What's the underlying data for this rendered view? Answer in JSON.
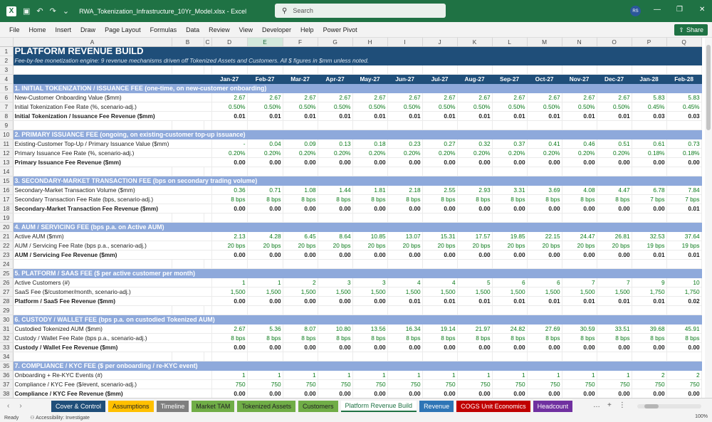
{
  "titlebar": {
    "app_icon": "X",
    "file_title": "RWA_Tokenization_Infrastructure_10Yr_Model.xlsx  -  Excel",
    "search_placeholder": "Search",
    "avatar": "RS",
    "minimize": "—",
    "restore": "❐",
    "close": "✕"
  },
  "menu": [
    "File",
    "Home",
    "Insert",
    "Draw",
    "Page Layout",
    "Formulas",
    "Data",
    "Review",
    "View",
    "Developer",
    "Help",
    "Power Pivot"
  ],
  "share_label": "Share",
  "columns": [
    "A",
    "B",
    "C",
    "D",
    "E",
    "F",
    "G",
    "H",
    "I",
    "J",
    "K",
    "L",
    "M",
    "N",
    "O",
    "P",
    "Q"
  ],
  "selected_column": "E",
  "sheet": {
    "title": "PLATFORM REVENUE BUILD",
    "subtitle": "Fee-by-fee monetization engine: 9 revenue mechanisms driven off Tokenized Assets and Customers. All $ figures in $mm unless noted.",
    "months": [
      "Jan-27",
      "Feb-27",
      "Mar-27",
      "Apr-27",
      "May-27",
      "Jun-27",
      "Jul-27",
      "Aug-27",
      "Sep-27",
      "Oct-27",
      "Nov-27",
      "Dec-27",
      "Jan-28",
      "Feb-28"
    ],
    "rows": [
      {
        "n": "5",
        "type": "section",
        "label": "1. INITIAL TOKENIZATION / ISSUANCE FEE (one-time, on new-customer onboarding)"
      },
      {
        "n": "6",
        "type": "input",
        "label": "New-Customer Onboarding Value ($mm)",
        "v": [
          "2.67",
          "2.67",
          "2.67",
          "2.67",
          "2.67",
          "2.67",
          "2.67",
          "2.67",
          "2.67",
          "2.67",
          "2.67",
          "2.67",
          "5.83",
          "5.83"
        ]
      },
      {
        "n": "7",
        "type": "input",
        "label": "Initial Tokenization Fee Rate (%, scenario-adj.)",
        "v": [
          "0.50%",
          "0.50%",
          "0.50%",
          "0.50%",
          "0.50%",
          "0.50%",
          "0.50%",
          "0.50%",
          "0.50%",
          "0.50%",
          "0.50%",
          "0.50%",
          "0.45%",
          "0.45%"
        ]
      },
      {
        "n": "8",
        "type": "total",
        "label": "Initial Tokenization / Issuance Fee Revenue ($mm)",
        "v": [
          "0.01",
          "0.01",
          "0.01",
          "0.01",
          "0.01",
          "0.01",
          "0.01",
          "0.01",
          "0.01",
          "0.01",
          "0.01",
          "0.01",
          "0.03",
          "0.03"
        ]
      },
      {
        "n": "9",
        "type": "blank"
      },
      {
        "n": "10",
        "type": "section",
        "label": "2. PRIMARY ISSUANCE FEE (ongoing, on existing-customer top-up issuance)"
      },
      {
        "n": "11",
        "type": "input",
        "label": "Existing-Customer Top-Up / Primary Issuance Value ($mm)",
        "v": [
          "-",
          "0.04",
          "0.09",
          "0.13",
          "0.18",
          "0.23",
          "0.27",
          "0.32",
          "0.37",
          "0.41",
          "0.46",
          "0.51",
          "0.61",
          "0.73"
        ]
      },
      {
        "n": "12",
        "type": "input",
        "label": "Primary Issuance Fee Rate (%, scenario-adj.)",
        "v": [
          "0.20%",
          "0.20%",
          "0.20%",
          "0.20%",
          "0.20%",
          "0.20%",
          "0.20%",
          "0.20%",
          "0.20%",
          "0.20%",
          "0.20%",
          "0.20%",
          "0.18%",
          "0.18%"
        ]
      },
      {
        "n": "13",
        "type": "total",
        "label": "Primary Issuance Fee Revenue ($mm)",
        "v": [
          "0.00",
          "0.00",
          "0.00",
          "0.00",
          "0.00",
          "0.00",
          "0.00",
          "0.00",
          "0.00",
          "0.00",
          "0.00",
          "0.00",
          "0.00",
          "0.00"
        ]
      },
      {
        "n": "14",
        "type": "blank"
      },
      {
        "n": "15",
        "type": "section",
        "label": "3. SECONDARY-MARKET TRANSACTION FEE (bps on secondary trading volume)"
      },
      {
        "n": "16",
        "type": "input",
        "label": "Secondary-Market Transaction Volume ($mm)",
        "v": [
          "0.36",
          "0.71",
          "1.08",
          "1.44",
          "1.81",
          "2.18",
          "2.55",
          "2.93",
          "3.31",
          "3.69",
          "4.08",
          "4.47",
          "6.78",
          "7.84"
        ]
      },
      {
        "n": "17",
        "type": "input",
        "label": "Secondary Transaction Fee Rate (bps, scenario-adj.)",
        "v": [
          "8 bps",
          "8 bps",
          "8 bps",
          "8 bps",
          "8 bps",
          "8 bps",
          "8 bps",
          "8 bps",
          "8 bps",
          "8 bps",
          "8 bps",
          "8 bps",
          "7 bps",
          "7 bps"
        ]
      },
      {
        "n": "18",
        "type": "total",
        "label": "Secondary-Market Transaction Fee Revenue ($mm)",
        "v": [
          "0.00",
          "0.00",
          "0.00",
          "0.00",
          "0.00",
          "0.00",
          "0.00",
          "0.00",
          "0.00",
          "0.00",
          "0.00",
          "0.00",
          "0.00",
          "0.01"
        ]
      },
      {
        "n": "19",
        "type": "blank"
      },
      {
        "n": "20",
        "type": "section",
        "label": "4. AUM / SERVICING FEE (bps p.a. on Active AUM)"
      },
      {
        "n": "21",
        "type": "input",
        "label": "Active AUM ($mm)",
        "v": [
          "2.13",
          "4.28",
          "6.45",
          "8.64",
          "10.85",
          "13.07",
          "15.31",
          "17.57",
          "19.85",
          "22.15",
          "24.47",
          "26.81",
          "32.53",
          "37.64"
        ]
      },
      {
        "n": "22",
        "type": "input",
        "label": "AUM / Servicing Fee Rate (bps p.a., scenario-adj.)",
        "v": [
          "20 bps",
          "20 bps",
          "20 bps",
          "20 bps",
          "20 bps",
          "20 bps",
          "20 bps",
          "20 bps",
          "20 bps",
          "20 bps",
          "20 bps",
          "20 bps",
          "19 bps",
          "19 bps"
        ]
      },
      {
        "n": "23",
        "type": "total",
        "label": "AUM / Servicing Fee Revenue ($mm)",
        "v": [
          "0.00",
          "0.00",
          "0.00",
          "0.00",
          "0.00",
          "0.00",
          "0.00",
          "0.00",
          "0.00",
          "0.00",
          "0.00",
          "0.00",
          "0.01",
          "0.01"
        ]
      },
      {
        "n": "24",
        "type": "blank"
      },
      {
        "n": "25",
        "type": "section",
        "label": "5. PLATFORM / SAAS FEE ($ per active customer per month)"
      },
      {
        "n": "26",
        "type": "input",
        "label": "Active Customers (#)",
        "v": [
          "1",
          "1",
          "2",
          "3",
          "3",
          "4",
          "4",
          "5",
          "6",
          "6",
          "7",
          "7",
          "9",
          "10"
        ]
      },
      {
        "n": "27",
        "type": "input",
        "label": "SaaS Fee ($/customer/month, scenario-adj.)",
        "v": [
          "1,500",
          "1,500",
          "1,500",
          "1,500",
          "1,500",
          "1,500",
          "1,500",
          "1,500",
          "1,500",
          "1,500",
          "1,500",
          "1,500",
          "1,750",
          "1,750"
        ]
      },
      {
        "n": "28",
        "type": "total",
        "label": "Platform / SaaS Fee Revenue ($mm)",
        "v": [
          "0.00",
          "0.00",
          "0.00",
          "0.00",
          "0.00",
          "0.01",
          "0.01",
          "0.01",
          "0.01",
          "0.01",
          "0.01",
          "0.01",
          "0.01",
          "0.02"
        ]
      },
      {
        "n": "29",
        "type": "blank"
      },
      {
        "n": "30",
        "type": "section",
        "label": "6. CUSTODY / WALLET FEE (bps p.a. on custodied Tokenized AUM)"
      },
      {
        "n": "31",
        "type": "input",
        "label": "Custodied Tokenized AUM ($mm)",
        "v": [
          "2.67",
          "5.36",
          "8.07",
          "10.80",
          "13.56",
          "16.34",
          "19.14",
          "21.97",
          "24.82",
          "27.69",
          "30.59",
          "33.51",
          "39.68",
          "45.91"
        ]
      },
      {
        "n": "32",
        "type": "input",
        "label": "Custody / Wallet Fee Rate (bps p.a., scenario-adj.)",
        "v": [
          "8 bps",
          "8 bps",
          "8 bps",
          "8 bps",
          "8 bps",
          "8 bps",
          "8 bps",
          "8 bps",
          "8 bps",
          "8 bps",
          "8 bps",
          "8 bps",
          "8 bps",
          "8 bps"
        ]
      },
      {
        "n": "33",
        "type": "total",
        "label": "Custody / Wallet Fee Revenue ($mm)",
        "v": [
          "0.00",
          "0.00",
          "0.00",
          "0.00",
          "0.00",
          "0.00",
          "0.00",
          "0.00",
          "0.00",
          "0.00",
          "0.00",
          "0.00",
          "0.00",
          "0.00"
        ]
      },
      {
        "n": "34",
        "type": "blank"
      },
      {
        "n": "35",
        "type": "section",
        "label": "7. COMPLIANCE / KYC FEE ($ per onboarding / re-KYC event)"
      },
      {
        "n": "36",
        "type": "input",
        "label": "Onboarding + Re-KYC Events (#)",
        "v": [
          "1",
          "1",
          "1",
          "1",
          "1",
          "1",
          "1",
          "1",
          "1",
          "1",
          "1",
          "1",
          "2",
          "2"
        ]
      },
      {
        "n": "37",
        "type": "input",
        "label": "Compliance / KYC Fee ($/event, scenario-adj.)",
        "v": [
          "750",
          "750",
          "750",
          "750",
          "750",
          "750",
          "750",
          "750",
          "750",
          "750",
          "750",
          "750",
          "750",
          "750"
        ]
      },
      {
        "n": "38",
        "type": "total",
        "label": "Compliance / KYC Fee Revenue ($mm)",
        "v": [
          "0.00",
          "0.00",
          "0.00",
          "0.00",
          "0.00",
          "0.00",
          "0.00",
          "0.00",
          "0.00",
          "0.00",
          "0.00",
          "0.00",
          "0.00",
          "0.00"
        ]
      }
    ]
  },
  "tabs": [
    {
      "label": "Cover & Control",
      "color": "#1f4e79"
    },
    {
      "label": "Assumptions",
      "color": "#ffc000",
      "text": "#222"
    },
    {
      "label": "Timeline",
      "color": "#7f7f7f"
    },
    {
      "label": "Market TAM",
      "color": "#70ad47",
      "text": "#222"
    },
    {
      "label": "Tokenized Assets",
      "color": "#70ad47",
      "text": "#222"
    },
    {
      "label": "Customers",
      "color": "#70ad47",
      "text": "#222"
    },
    {
      "label": "Platform Revenue Build",
      "active": true
    },
    {
      "label": "Revenue",
      "color": "#2e75b6"
    },
    {
      "label": "COGS Unit Economics",
      "color": "#c00000"
    },
    {
      "label": "Headcount",
      "color": "#7030a0"
    }
  ],
  "tab_tools": [
    "…",
    "+",
    "⋮"
  ],
  "status": {
    "ready": "Ready",
    "accessibility": "Accessibility: Investigate",
    "zoom": "100%"
  }
}
